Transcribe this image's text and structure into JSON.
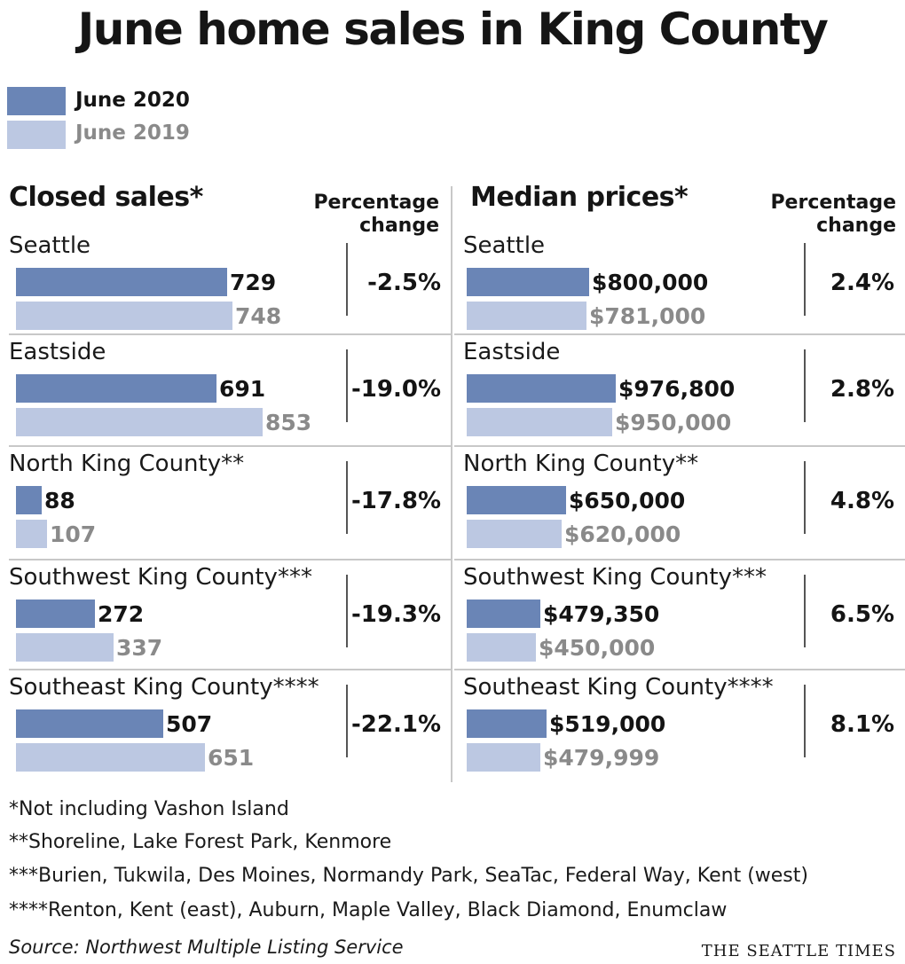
{
  "title": "June home sales in King County",
  "legend": [
    {
      "label": "June 2020",
      "color": "#6a85b6",
      "text_color": "#141414"
    },
    {
      "label": "June 2019",
      "color": "#bcc8e2",
      "text_color": "#8a8a8a"
    }
  ],
  "chart_data": [
    {
      "type": "bar",
      "title": "Closed sales*",
      "change_header": "Percentage change",
      "categories": [
        "Seattle",
        "Eastside",
        "North King County**",
        "Southwest King County***",
        "Southeast King County****"
      ],
      "series": [
        {
          "name": "June 2020",
          "values": [
            729,
            691,
            88,
            272,
            507
          ],
          "labels": [
            "729",
            "691",
            "88",
            "272",
            "507"
          ]
        },
        {
          "name": "June 2019",
          "values": [
            748,
            853,
            107,
            337,
            651
          ],
          "labels": [
            "748",
            "853",
            "107",
            "337",
            "651"
          ]
        }
      ],
      "change": [
        "-2.5%",
        "-19.0%",
        "-17.8%",
        "-19.3%",
        "-22.1%"
      ]
    },
    {
      "type": "bar",
      "title": "Median prices*",
      "change_header": "Percentage change",
      "categories": [
        "Seattle",
        "Eastside",
        "North King County**",
        "Southwest King County***",
        "Southeast King County****"
      ],
      "series": [
        {
          "name": "June 2020",
          "values": [
            800000,
            976800,
            650000,
            479350,
            519000
          ],
          "labels": [
            "$800,000",
            "$976,800",
            "$650,000",
            "$479,350",
            "$519,000"
          ]
        },
        {
          "name": "June 2019",
          "values": [
            781000,
            950000,
            620000,
            450000,
            479999
          ],
          "labels": [
            "$781,000",
            "$950,000",
            "$620,000",
            "$450,000",
            "$479,999"
          ]
        }
      ],
      "change": [
        "2.4%",
        "2.8%",
        "4.8%",
        "6.5%",
        "8.1%"
      ]
    }
  ],
  "footnotes": [
    "*Not including Vashon Island",
    "**Shoreline, Lake Forest Park, Kenmore",
    "***Burien, Tukwila, Des Moines, Normandy Park, SeaTac, Federal Way, Kent (west)",
    "****Renton, Kent (east), Auburn, Maple Valley, Black Diamond, Enumclaw"
  ],
  "source": "Source: Northwest Multiple Listing Service",
  "credit": "THE SEATTLE TIMES"
}
